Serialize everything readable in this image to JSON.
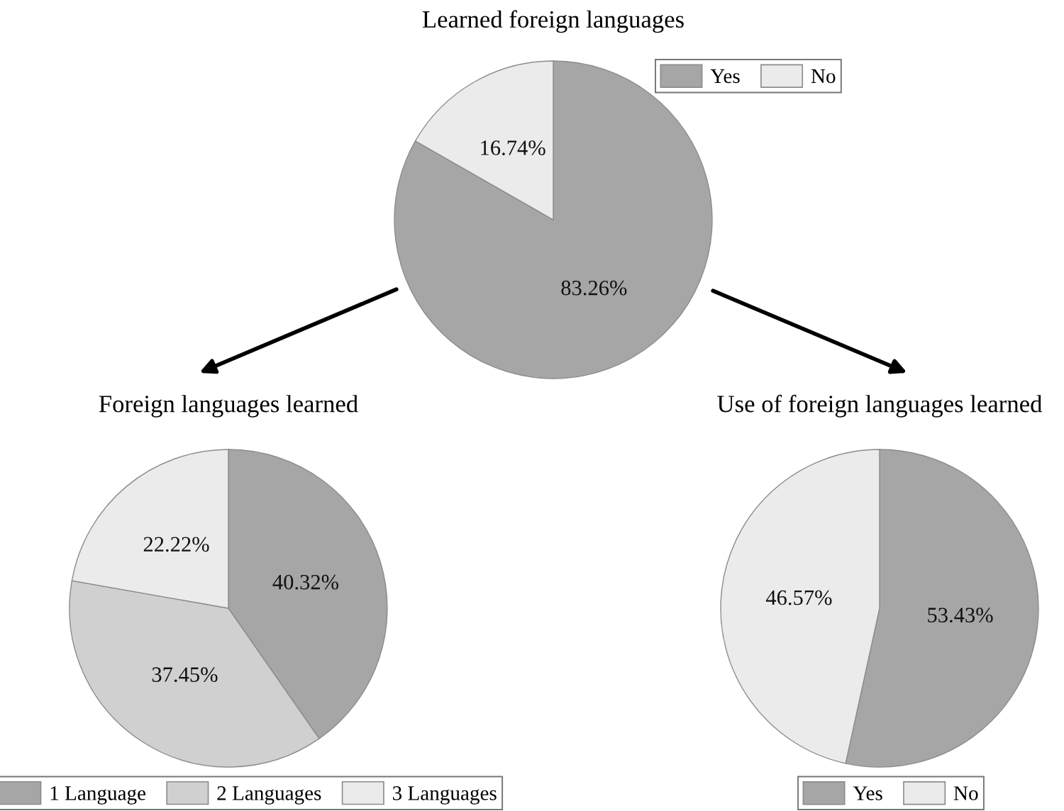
{
  "chart_data": [
    {
      "type": "pie",
      "title": "Learned foreign languages",
      "categories": [
        "Yes",
        "No"
      ],
      "values": [
        83.26,
        16.74
      ],
      "colors": [
        "#a6a6a6",
        "#ebebeb"
      ],
      "value_labels": [
        "83.26%",
        "16.74%"
      ],
      "legend": "top right"
    },
    {
      "type": "pie",
      "title": "Foreign languages learned",
      "categories": [
        "1 Language",
        "2 Languages",
        "3 Languages"
      ],
      "values": [
        40.32,
        37.45,
        22.22
      ],
      "colors": [
        "#a6a6a6",
        "#d0d0d0",
        "#ebebeb"
      ],
      "value_labels": [
        "40.32%",
        "37.45%",
        "22.22%"
      ],
      "legend": "bottom"
    },
    {
      "type": "pie",
      "title": "Use of foreign languages learned",
      "categories": [
        "Yes",
        "No"
      ],
      "values": [
        53.43,
        46.57
      ],
      "colors": [
        "#a6a6a6",
        "#ebebeb"
      ],
      "value_labels": [
        "53.43%",
        "46.57%"
      ],
      "legend": "bottom"
    }
  ]
}
